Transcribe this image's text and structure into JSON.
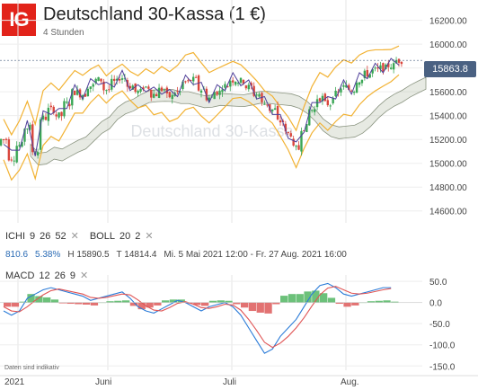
{
  "header": {
    "logo": "IG",
    "title": "Deutschland 30-Kassa (1 €)",
    "subtitle": "4 Stunden"
  },
  "current_price": "15863.8",
  "indicators": {
    "ichi": {
      "label": "ICHI",
      "p1": "9",
      "p2": "26",
      "p3": "52"
    },
    "boll": {
      "label": "BOLL",
      "p1": "20",
      "p2": "2"
    },
    "macd": {
      "label": "MACD",
      "p1": "12",
      "p2": "26",
      "p3": "9"
    }
  },
  "info": {
    "change": "810.6",
    "change_pct": "5.38%",
    "high": "H 15890.5",
    "low": "T 14814.4",
    "range": "Mi. 5 Mai 2021 12:00 - Fr. 27 Aug. 2021 16:00"
  },
  "disclaimer": "Daten sind indikativ",
  "watermark": "Deutschland 30-Kassa",
  "colors": {
    "candle_up": "#3aa655",
    "candle_down": "#d9463c",
    "boll": "#f2b233",
    "tenkan": "#4f3f9a",
    "kijun": "#6a5acd",
    "cloud": "#b9c4b0",
    "macd_line": "#2a7bd8",
    "signal_line": "#e05555",
    "hist_pos": "#6cc17a",
    "hist_neg": "#e27272",
    "accent": "#e2231a"
  },
  "chart_data": [
    {
      "type": "candlestick",
      "title": "Deutschland 30-Kassa (1 €)",
      "xlabel": "",
      "ylabel": "",
      "x_ticks": [
        "2021",
        "Juni",
        "Juli",
        "Aug."
      ],
      "x_range": [
        "2021-05-05",
        "2021-08-27"
      ],
      "ylim": [
        14500,
        16250
      ],
      "y_ticks": [
        14600,
        14800,
        15000,
        15200,
        15400,
        15600,
        15800,
        16000,
        16200
      ],
      "closes": [
        15200,
        15050,
        15150,
        15300,
        15100,
        15380,
        15450,
        15400,
        15500,
        15600,
        15580,
        15650,
        15700,
        15620,
        15680,
        15720,
        15650,
        15600,
        15640,
        15580,
        15620,
        15560,
        15600,
        15680,
        15700,
        15620,
        15550,
        15600,
        15650,
        15700,
        15690,
        15640,
        15580,
        15500,
        15450,
        15350,
        15250,
        15120,
        15300,
        15450,
        15550,
        15500,
        15580,
        15640,
        15620,
        15700,
        15750,
        15780,
        15800,
        15820,
        15864
      ],
      "high": 15890.5,
      "low": 14814.4,
      "last": 15863.8,
      "change": 810.6,
      "change_pct": 5.38
    },
    {
      "type": "line",
      "title": "MACD 12 26 9",
      "ylim": [
        -160,
        65
      ],
      "y_ticks": [
        50,
        0,
        -50,
        -100,
        -150
      ],
      "series": [
        {
          "name": "MACD",
          "values": [
            -20,
            -30,
            -20,
            10,
            20,
            30,
            35,
            30,
            25,
            20,
            15,
            5,
            10,
            15,
            20,
            25,
            10,
            -10,
            -20,
            -25,
            -15,
            -5,
            5,
            0,
            -10,
            -20,
            -10,
            -5,
            0,
            -10,
            -30,
            -60,
            -90,
            -120,
            -110,
            -80,
            -60,
            -40,
            -10,
            20,
            40,
            45,
            35,
            20,
            15,
            20,
            25,
            30,
            35,
            35
          ]
        },
        {
          "name": "Signal",
          "values": [
            -10,
            -20,
            -22,
            -10,
            5,
            18,
            28,
            32,
            28,
            24,
            20,
            12,
            10,
            12,
            16,
            20,
            18,
            6,
            -8,
            -18,
            -20,
            -12,
            -2,
            2,
            -4,
            -12,
            -14,
            -10,
            -4,
            -6,
            -18,
            -40,
            -66,
            -94,
            -106,
            -96,
            -80,
            -60,
            -36,
            -8,
            18,
            34,
            38,
            30,
            22,
            20,
            22,
            26,
            30,
            33
          ]
        },
        {
          "name": "Histogram",
          "values": [
            -10,
            -10,
            2,
            20,
            15,
            12,
            7,
            -2,
            -3,
            -4,
            -5,
            -7,
            0,
            3,
            4,
            5,
            -8,
            -16,
            -12,
            -7,
            5,
            7,
            7,
            -2,
            -6,
            -8,
            4,
            5,
            4,
            -4,
            -12,
            -20,
            -24,
            -26,
            -4,
            16,
            20,
            20,
            26,
            28,
            22,
            11,
            -3,
            -10,
            -7,
            0,
            3,
            4,
            5,
            2
          ]
        }
      ]
    }
  ]
}
